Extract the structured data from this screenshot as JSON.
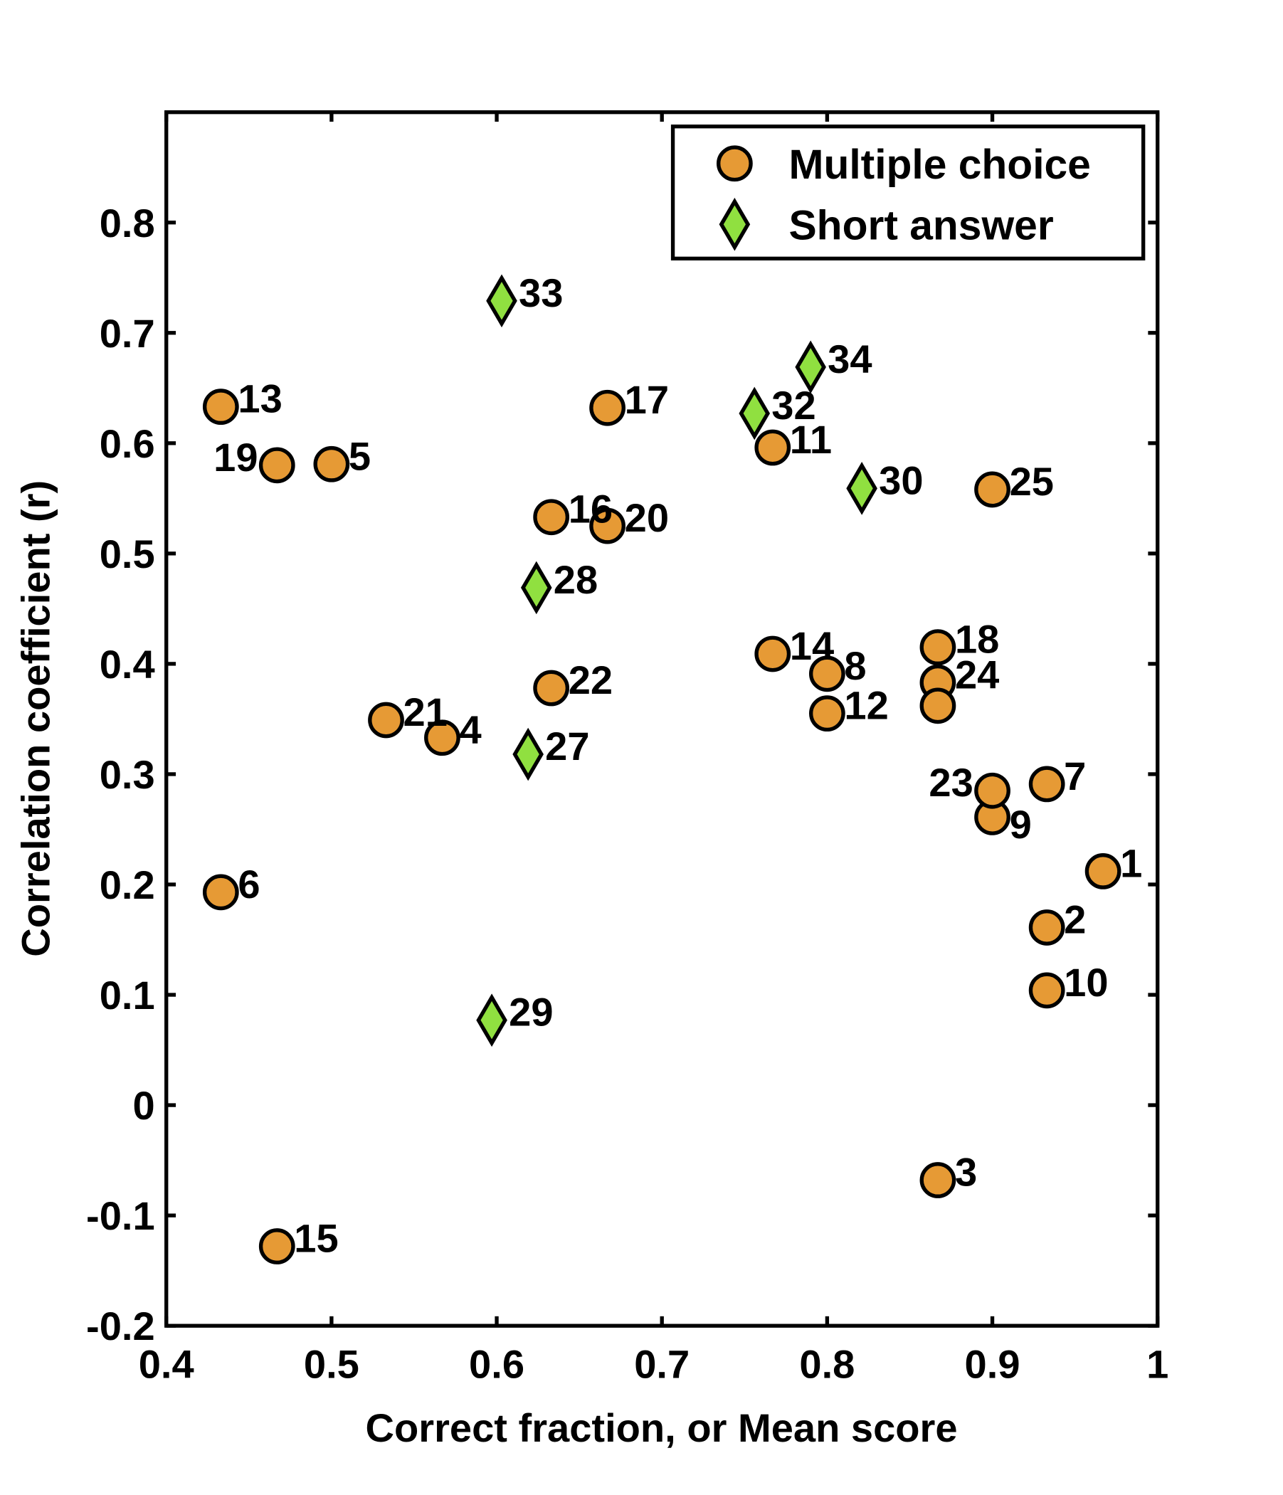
{
  "chart_data": {
    "type": "scatter",
    "xlabel": "Correct fraction, or Mean score",
    "ylabel": "Correlation coefficient (r)",
    "xlim": [
      0.4,
      1.0
    ],
    "ylim": [
      -0.2,
      0.9
    ],
    "xticks": [
      "0.4",
      "0.5",
      "0.6",
      "0.7",
      "0.8",
      "0.9",
      "1"
    ],
    "yticks": [
      "-0.2",
      "-0.1",
      "0",
      "0.1",
      "0.2",
      "0.3",
      "0.4",
      "0.5",
      "0.6",
      "0.7",
      "0.8"
    ],
    "grid": false,
    "legend_position": "top-right",
    "series": [
      {
        "name": "Multiple choice",
        "marker": "circle",
        "color": "#E69A35",
        "points": [
          {
            "label": "1",
            "x": 0.967,
            "y": 0.212
          },
          {
            "label": "2",
            "x": 0.933,
            "y": 0.161
          },
          {
            "label": "3",
            "x": 0.867,
            "y": -0.068
          },
          {
            "label": "4",
            "x": 0.567,
            "y": 0.333
          },
          {
            "label": "5",
            "x": 0.5,
            "y": 0.581
          },
          {
            "label": "6",
            "x": 0.433,
            "y": 0.193
          },
          {
            "label": "7",
            "x": 0.933,
            "y": 0.291
          },
          {
            "label": "8",
            "x": 0.8,
            "y": 0.391
          },
          {
            "label": "9",
            "x": 0.9,
            "y": 0.261
          },
          {
            "label": "10",
            "x": 0.933,
            "y": 0.104
          },
          {
            "label": "11",
            "x": 0.767,
            "y": 0.596
          },
          {
            "label": "12",
            "x": 0.8,
            "y": 0.355
          },
          {
            "label": "13",
            "x": 0.433,
            "y": 0.633
          },
          {
            "label": "14",
            "x": 0.767,
            "y": 0.409
          },
          {
            "label": "15",
            "x": 0.467,
            "y": -0.128
          },
          {
            "label": "16",
            "x": 0.633,
            "y": 0.533
          },
          {
            "label": "17",
            "x": 0.667,
            "y": 0.632
          },
          {
            "label": "18",
            "x": 0.867,
            "y": 0.415
          },
          {
            "label": "19",
            "x": 0.467,
            "y": 0.58
          },
          {
            "label": "20",
            "x": 0.667,
            "y": 0.525
          },
          {
            "label": "21",
            "x": 0.533,
            "y": 0.349
          },
          {
            "label": "22",
            "x": 0.633,
            "y": 0.378
          },
          {
            "label": "23",
            "x": 0.9,
            "y": 0.285
          },
          {
            "label": "24",
            "x": 0.867,
            "y": 0.383
          },
          {
            "label": "25",
            "x": 0.9,
            "y": 0.558
          },
          {
            "label": "",
            "x": 0.867,
            "y": 0.362
          }
        ]
      },
      {
        "name": "Short answer",
        "marker": "diamond",
        "color": "#90E040",
        "points": [
          {
            "label": "27",
            "x": 0.619,
            "y": 0.318
          },
          {
            "label": "28",
            "x": 0.624,
            "y": 0.469
          },
          {
            "label": "29",
            "x": 0.597,
            "y": 0.077
          },
          {
            "label": "30",
            "x": 0.821,
            "y": 0.559
          },
          {
            "label": "32",
            "x": 0.756,
            "y": 0.627
          },
          {
            "label": "33",
            "x": 0.603,
            "y": 0.729
          },
          {
            "label": "34",
            "x": 0.79,
            "y": 0.669
          }
        ]
      }
    ]
  }
}
